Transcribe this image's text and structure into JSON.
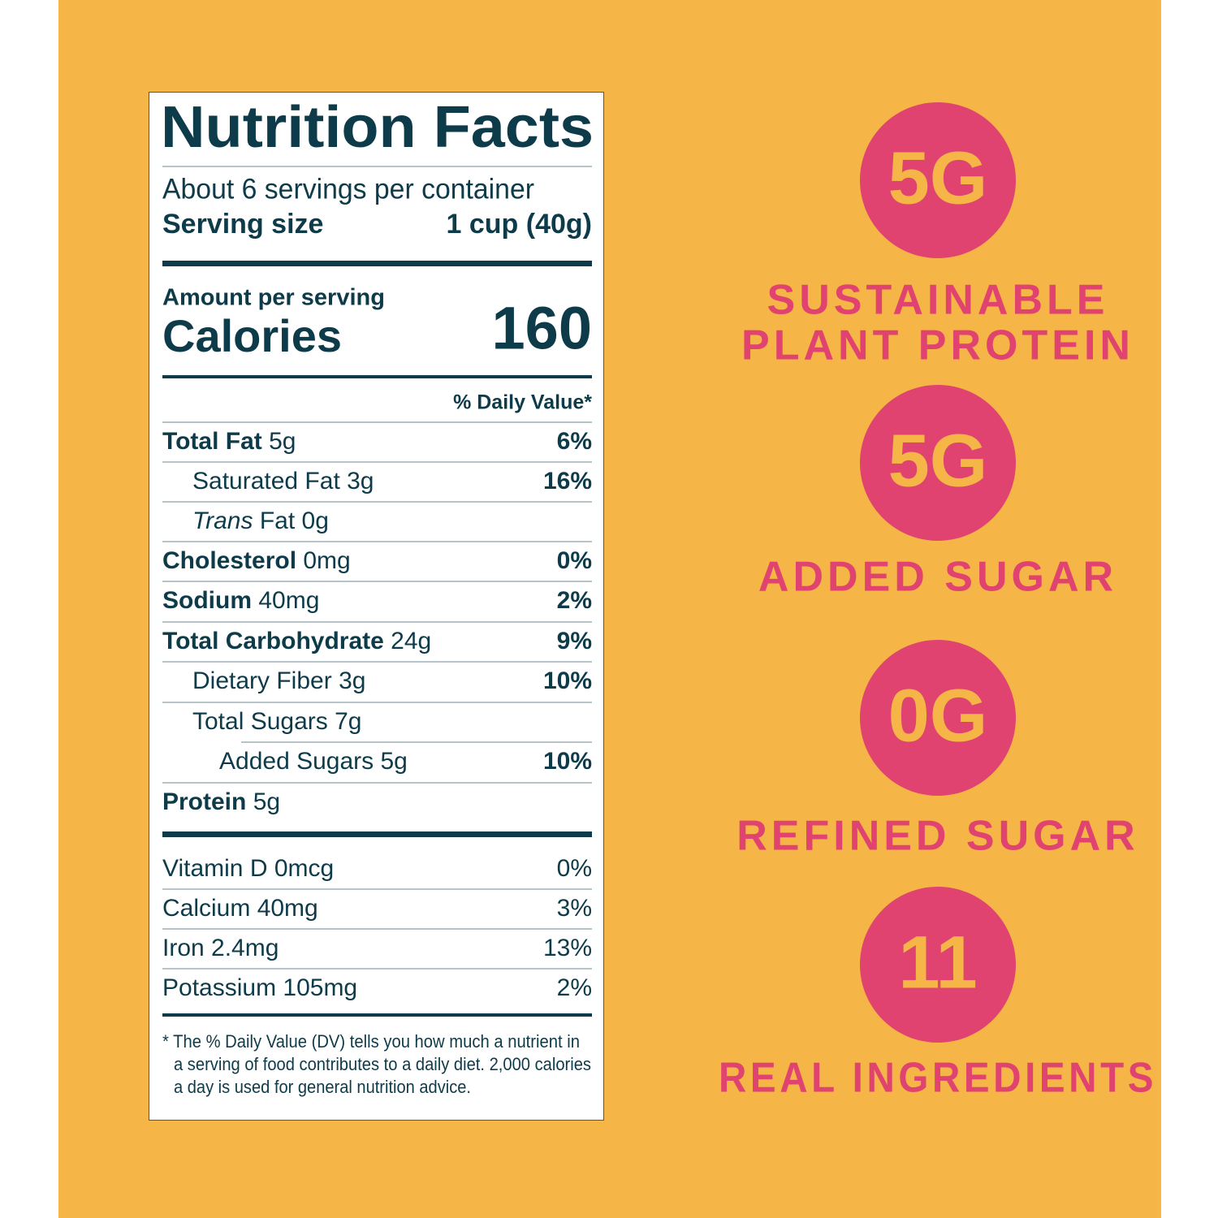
{
  "label": {
    "title": "Nutrition Facts",
    "servings": "About 6 servings per container",
    "serving_size_label": "Serving size",
    "serving_size_value": "1 cup (40g)",
    "amount_per_serving": "Amount per serving",
    "calories_label": "Calories",
    "calories_value": "160",
    "daily_value_header": "% Daily Value*",
    "nutrients": [
      {
        "name": "Total Fat",
        "amount": "5g",
        "dv": "6%"
      },
      {
        "name": "Saturated Fat",
        "amount": "3g",
        "dv": "16%"
      },
      {
        "name_italic": "Trans",
        "name": "Fat",
        "amount": "0g"
      },
      {
        "name": "Cholesterol",
        "amount": "0mg",
        "dv": "0%"
      },
      {
        "name": "Sodium",
        "amount": "40mg",
        "dv": "2%"
      },
      {
        "name": "Total Carbohydrate",
        "amount": "24g",
        "dv": "9%"
      },
      {
        "name": "Dietary Fiber",
        "amount": "3g",
        "dv": "10%"
      },
      {
        "name": "Total Sugars",
        "amount": "7g"
      },
      {
        "name": "Added Sugars",
        "amount": "5g",
        "dv": "10%"
      },
      {
        "name": "Protein",
        "amount": "5g"
      }
    ],
    "vitamins": [
      {
        "name": "Vitamin D 0mcg",
        "dv": "0%"
      },
      {
        "name": "Calcium 40mg",
        "dv": "3%"
      },
      {
        "name": "Iron 2.4mg",
        "dv": "13%"
      },
      {
        "name": "Potassium 105mg",
        "dv": "2%"
      }
    ],
    "footnote": [
      "* The % Daily Value (DV) tells you how much a nutrient in",
      "a serving of food contributes to a daily diet. 2,000 calories",
      "a day is used for general nutrition advice."
    ]
  },
  "claims": [
    {
      "value": "5G",
      "text": [
        "SUSTAINABLE",
        "PLANT PROTEIN"
      ]
    },
    {
      "value": "5G",
      "text": [
        "ADDED SUGAR"
      ]
    },
    {
      "value": "0G",
      "text": [
        "REFINED SUGAR"
      ]
    },
    {
      "value": "11",
      "text": [
        "REAL INGREDIENTS"
      ]
    }
  ]
}
